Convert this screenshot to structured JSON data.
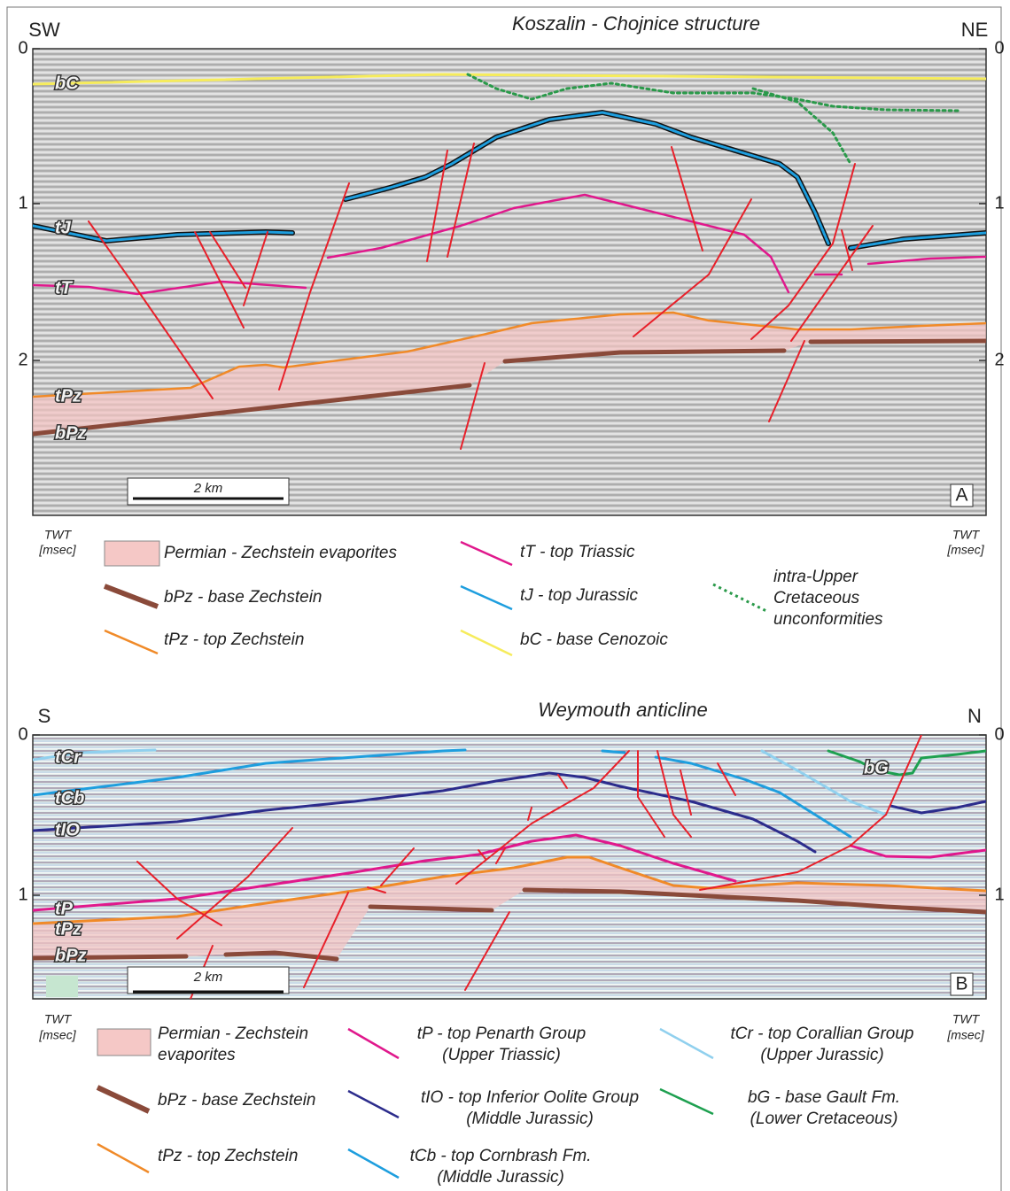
{
  "panels": [
    {
      "title": "Koszalin - Chojnice structure",
      "left_end": "SW",
      "right_end": "NE",
      "axis_ticks": [
        "0",
        "1",
        "2"
      ],
      "horizon_labels": [
        "bC",
        "tJ",
        "tT",
        "tPz",
        "bPz"
      ],
      "scale_bar": "2 km",
      "panel_label": "A",
      "axis_title": "TWT",
      "axis_unit": "[msec]",
      "legend": [
        {
          "lines": [
            "Permian - Zechstein evaporites"
          ]
        },
        {
          "lines": [
            "bPz - base Zechstein"
          ]
        },
        {
          "lines": [
            "tPz - top Zechstein"
          ]
        },
        {
          "lines": [
            "tT - top Triassic"
          ]
        },
        {
          "lines": [
            "tJ - top Jurassic"
          ]
        },
        {
          "lines": [
            "bC - base Cenozoic"
          ]
        },
        {
          "lines": [
            "intra-Upper",
            "Cretaceous",
            "unconformities"
          ]
        }
      ]
    },
    {
      "title": "Weymouth anticline",
      "left_end": "S",
      "right_end": "N",
      "axis_ticks": [
        "0",
        "1"
      ],
      "horizon_labels": [
        "tCr",
        "tCb",
        "tIO",
        "tP",
        "tPz",
        "bPz",
        "bG"
      ],
      "scale_bar": "2 km",
      "panel_label": "B",
      "axis_title": "TWT",
      "axis_unit": "[msec]",
      "legend": [
        {
          "lines": [
            "Permian - Zechstein",
            "evaporites"
          ]
        },
        {
          "lines": [
            "bPz - base Zechstein"
          ]
        },
        {
          "lines": [
            "tPz - top Zechstein"
          ]
        },
        {
          "lines": [
            "tP - top Penarth Group",
            "(Upper Triassic)"
          ]
        },
        {
          "lines": [
            "tIO - top Inferior Oolite Group",
            "(Middle Jurassic)"
          ]
        },
        {
          "lines": [
            "tCb - top Cornbrash Fm.",
            "(Middle Jurassic)"
          ]
        },
        {
          "lines": [
            "tCr - top Corallian Group",
            "(Upper Jurassic)"
          ]
        },
        {
          "lines": [
            "bG - base Gault Fm.",
            "(Lower Cretaceous)"
          ]
        }
      ]
    }
  ]
}
